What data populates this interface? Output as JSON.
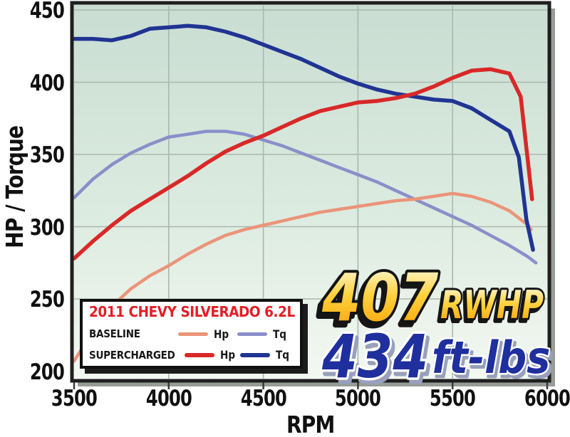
{
  "window_title": "Dyno chart - 2011 Chevy Silverado 6.2L baseline vs supercharged",
  "chart": {
    "y_axis_title": "HP / Torque",
    "x_axis_title": "RPM",
    "plot_bg_top": "#c9ddd2",
    "plot_bg_mid": "#dcebe0",
    "plot_bg_bottom": "#f3f8f2",
    "grid_color": "#a9b8ae",
    "frame_color": "#1f1f1f",
    "frame_shadow_color": "#969d96"
  },
  "chart_data": {
    "type": "line",
    "title": "2011 CHEVY SILVERADO 6.2L",
    "xlabel": "RPM",
    "ylabel": "HP / Torque",
    "xlim": [
      3500,
      6000
    ],
    "ylim": [
      200,
      450
    ],
    "x_ticks": [
      3500,
      4000,
      4500,
      5000,
      5500,
      6000
    ],
    "y_ticks": [
      450,
      400,
      350,
      300,
      250,
      200
    ],
    "grid": true,
    "legend_position": "bottom-left",
    "annotations": [
      "407 RWHP peak horsepower",
      "434 ft-lbs peak torque"
    ],
    "series": [
      {
        "name": "Baseline Tq",
        "color": "#8a8fc9",
        "width": 4.5,
        "x": [
          3500,
          3600,
          3700,
          3800,
          3900,
          4000,
          4100,
          4200,
          4300,
          4400,
          4500,
          4600,
          4700,
          4800,
          4900,
          5000,
          5100,
          5200,
          5300,
          5400,
          5500,
          5600,
          5700,
          5800,
          5900,
          5940
        ],
        "y": [
          320,
          333,
          343,
          351,
          357,
          362,
          364,
          366,
          366,
          364,
          360,
          356,
          351,
          346,
          341,
          336,
          331,
          325,
          319,
          313,
          307,
          301,
          294,
          287,
          279,
          275
        ]
      },
      {
        "name": "Baseline Hp",
        "color": "#eb9479",
        "width": 4.5,
        "x": [
          3500,
          3600,
          3700,
          3800,
          3900,
          4000,
          4100,
          4200,
          4300,
          4400,
          4500,
          4600,
          4700,
          4800,
          4900,
          5000,
          5100,
          5200,
          5300,
          5400,
          5500,
          5600,
          5700,
          5800,
          5900,
          5915
        ],
        "y": [
          207,
          228,
          245,
          257,
          266,
          273,
          281,
          288,
          294,
          298,
          301,
          304,
          307,
          310,
          312,
          314,
          316,
          318,
          319,
          321,
          323,
          321,
          317,
          311,
          301,
          298
        ]
      },
      {
        "name": "Supercharged Tq",
        "color": "#203493",
        "width": 5.5,
        "x": [
          3500,
          3600,
          3700,
          3800,
          3900,
          4000,
          4100,
          4200,
          4300,
          4400,
          4500,
          4600,
          4700,
          4800,
          4900,
          5000,
          5100,
          5200,
          5300,
          5400,
          5500,
          5600,
          5700,
          5800,
          5850,
          5890,
          5925
        ],
        "y": [
          430,
          430,
          429,
          432,
          437,
          438,
          439,
          438,
          435,
          431,
          426,
          421,
          416,
          410,
          404,
          399,
          395,
          392,
          390,
          388,
          387,
          382,
          374,
          366,
          348,
          305,
          284
        ]
      },
      {
        "name": "Supercharged Hp",
        "color": "#d92828",
        "width": 5.5,
        "x": [
          3500,
          3600,
          3700,
          3800,
          3900,
          4000,
          4100,
          4200,
          4300,
          4400,
          4500,
          4600,
          4700,
          4800,
          4900,
          5000,
          5100,
          5200,
          5300,
          5400,
          5500,
          5600,
          5700,
          5800,
          5860,
          5920
        ],
        "y": [
          278,
          290,
          301,
          311,
          319,
          327,
          335,
          344,
          352,
          358,
          363,
          369,
          375,
          380,
          383,
          386,
          387,
          389,
          392,
          397,
          403,
          408,
          409,
          406,
          390,
          319
        ]
      }
    ]
  },
  "legend": {
    "title": "2011 CHEVY SILVERADO 6.2L",
    "rows": [
      {
        "label": "BASELINE",
        "hp_label": "Hp",
        "tq_label": "Tq"
      },
      {
        "label": "SUPERCHARGED",
        "hp_label": "Hp",
        "tq_label": "Tq"
      }
    ]
  },
  "callout": {
    "hp_value": "407",
    "hp_unit": "RWHP",
    "tq_value": "434",
    "tq_unit": "ft-lbs",
    "hp_color_top": "#fffef0",
    "hp_color_mid": "#ffd23e",
    "hp_color_bottom": "#f79c00",
    "tq_color": "#1f2f9e"
  }
}
